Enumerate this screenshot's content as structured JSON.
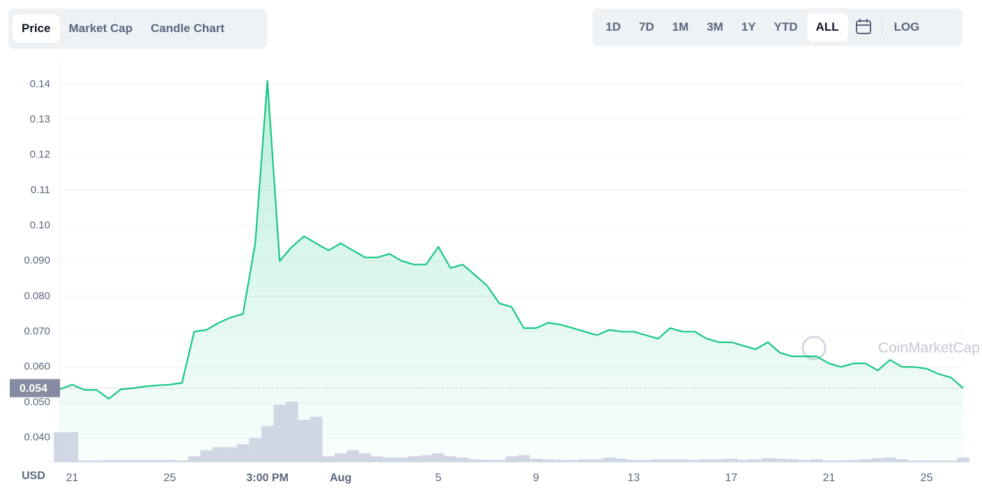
{
  "controls": {
    "tabs": [
      "Price",
      "Market Cap",
      "Candle Chart"
    ],
    "ranges": [
      "1D",
      "7D",
      "1M",
      "3M",
      "1Y",
      "YTD",
      "ALL"
    ],
    "log": "LOG"
  },
  "chart_data": {
    "type": "line",
    "currency": "USD",
    "watermark": "CoinMarketCap",
    "current_price": 0.054,
    "categories": [
      null,
      "21",
      null,
      null,
      null,
      null,
      null,
      null,
      null,
      "25",
      null,
      null,
      null,
      null,
      null,
      null,
      null,
      "3:00 PM",
      null,
      null,
      null,
      null,
      null,
      "Aug",
      null,
      null,
      null,
      null,
      null,
      null,
      null,
      "5",
      null,
      null,
      null,
      null,
      null,
      null,
      null,
      "9",
      null,
      null,
      null,
      null,
      null,
      null,
      null,
      "13",
      null,
      null,
      null,
      null,
      null,
      null,
      null,
      "17",
      null,
      null,
      null,
      null,
      null,
      null,
      null,
      "21",
      null,
      null,
      null,
      null,
      null,
      null,
      null,
      "25",
      null,
      null,
      null
    ],
    "series": [
      {
        "name": "Price",
        "color": "#16c784",
        "values": [
          0.0537,
          0.055,
          0.0535,
          0.0535,
          0.051,
          0.0537,
          0.054,
          0.0545,
          0.0548,
          0.055,
          0.0555,
          0.07,
          0.0705,
          0.0725,
          0.074,
          0.075,
          0.095,
          0.141,
          0.09,
          0.094,
          0.097,
          0.095,
          0.093,
          0.095,
          0.093,
          0.091,
          0.091,
          0.092,
          0.09,
          0.089,
          0.089,
          0.094,
          0.088,
          0.089,
          0.086,
          0.083,
          0.078,
          0.077,
          0.071,
          0.071,
          0.0725,
          0.072,
          0.071,
          0.07,
          0.069,
          0.0705,
          0.07,
          0.07,
          0.069,
          0.068,
          0.071,
          0.07,
          0.07,
          0.068,
          0.067,
          0.067,
          0.066,
          0.065,
          0.067,
          0.064,
          0.063,
          0.063,
          0.063,
          0.061,
          0.06,
          0.061,
          0.061,
          0.059,
          0.062,
          0.06,
          0.06,
          0.0595,
          0.058,
          0.057,
          0.054
        ]
      },
      {
        "name": "Volume",
        "color": "#cfd6e4",
        "axis": "y2",
        "values": [
          50,
          50,
          3,
          3,
          4,
          4,
          4,
          4,
          4,
          4,
          3,
          10,
          20,
          25,
          25,
          30,
          40,
          60,
          95,
          100,
          70,
          75,
          10,
          15,
          20,
          15,
          10,
          8,
          8,
          10,
          12,
          15,
          10,
          8,
          5,
          4,
          4,
          10,
          12,
          6,
          5,
          4,
          4,
          5,
          5,
          8,
          6,
          4,
          4,
          5,
          5,
          5,
          4,
          5,
          5,
          6,
          4,
          5,
          7,
          6,
          5,
          4,
          5,
          3,
          3,
          4,
          5,
          7,
          8,
          5,
          3,
          3,
          3,
          3,
          8
        ]
      }
    ],
    "ylim": [
      0.033,
      0.1465
    ],
    "yticks": [
      {
        "value": 0.04,
        "label": "0.040"
      },
      {
        "value": 0.05,
        "label": "0.050"
      },
      {
        "value": 0.06,
        "label": "0.060"
      },
      {
        "value": 0.07,
        "label": "0.070"
      },
      {
        "value": 0.08,
        "label": "0.080"
      },
      {
        "value": 0.09,
        "label": "0.090"
      },
      {
        "value": 0.1,
        "label": "0.10"
      },
      0.11,
      0.12,
      0.13,
      0.14
    ],
    "y2lim": [
      0,
      100
    ],
    "grid": true
  }
}
